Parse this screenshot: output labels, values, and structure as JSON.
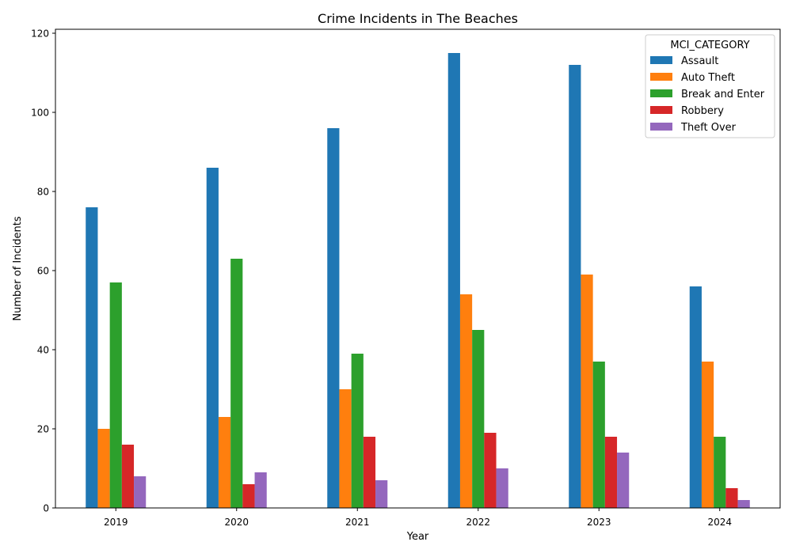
{
  "chart_data": {
    "type": "bar",
    "title": "Crime Incidents in The Beaches",
    "xlabel": "Year",
    "ylabel": "Number of Incidents",
    "categories": [
      "2019",
      "2020",
      "2021",
      "2022",
      "2023",
      "2024"
    ],
    "ylim": [
      0,
      121
    ],
    "yticks": [
      0,
      20,
      40,
      60,
      80,
      100,
      120
    ],
    "grid": false,
    "legend": {
      "title": "MCI_CATEGORY",
      "placement": "top-right"
    },
    "series": [
      {
        "name": "Assault",
        "color": "#1f77b4",
        "values": [
          76,
          86,
          96,
          115,
          112,
          56
        ]
      },
      {
        "name": "Auto Theft",
        "color": "#ff7f0e",
        "values": [
          20,
          23,
          30,
          54,
          59,
          37
        ]
      },
      {
        "name": "Break and Enter",
        "color": "#2ca02c",
        "values": [
          57,
          63,
          39,
          45,
          37,
          18
        ]
      },
      {
        "name": "Robbery",
        "color": "#d62728",
        "values": [
          16,
          6,
          18,
          19,
          18,
          5
        ]
      },
      {
        "name": "Theft Over",
        "color": "#9467bd",
        "values": [
          8,
          9,
          7,
          10,
          14,
          2
        ]
      }
    ]
  }
}
